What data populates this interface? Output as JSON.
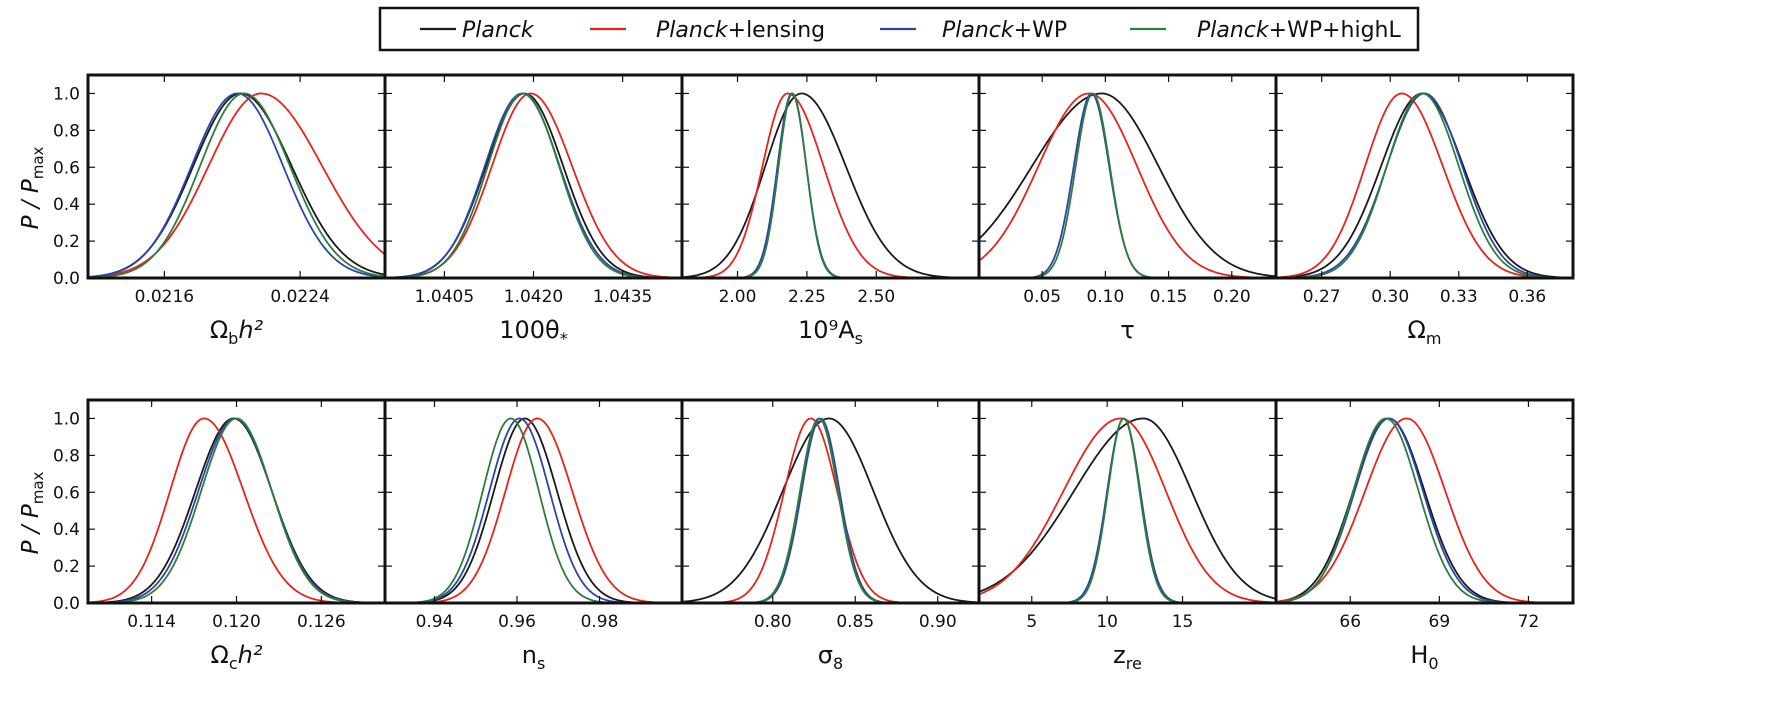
{
  "legend": {
    "entries": [
      {
        "prefix": "Planck",
        "suffix": "",
        "color": "#1a1a1a"
      },
      {
        "prefix": "Planck",
        "suffix": "+lensing",
        "color": "#e8231b"
      },
      {
        "prefix": "Planck",
        "suffix": "+WP",
        "color": "#2b46a8"
      },
      {
        "prefix": "Planck",
        "suffix": "+WP+highL",
        "color": "#2e7d3a"
      }
    ]
  },
  "row_ylabels": [
    {
      "main": "P / P",
      "sub": "max"
    },
    {
      "main": "P / P",
      "sub": "max"
    }
  ],
  "chart_data": [
    {
      "type": "line",
      "xlabel_main": "Ω",
      "xlabel_sub": "b",
      "xlabel_tail": "h²",
      "xlim": [
        0.02115,
        0.0229
      ],
      "ylim": [
        0,
        1.1
      ],
      "xticks": [
        0.0216,
        0.0224
      ],
      "xtick_labels": [
        "0.0216",
        "0.0224"
      ],
      "yticks": [
        0.0,
        0.2,
        0.4,
        0.6,
        0.8,
        1.0
      ],
      "ytick_labels": [
        "0.0",
        "0.2",
        "0.4",
        "0.6",
        "0.8",
        "1.0"
      ],
      "series": [
        {
          "name": "Planck",
          "peak": 0.02205,
          "sigma_left": 0.00028,
          "sigma_right": 0.0003
        },
        {
          "name": "Planck+lensing",
          "peak": 0.02217,
          "sigma_left": 0.00031,
          "sigma_right": 0.00036
        },
        {
          "name": "Planck+WP",
          "peak": 0.02203,
          "sigma_left": 0.00027,
          "sigma_right": 0.00027
        },
        {
          "name": "Planck+WP+highL",
          "peak": 0.02207,
          "sigma_left": 0.00026,
          "sigma_right": 0.00027
        }
      ]
    },
    {
      "type": "line",
      "xlabel_main": "100θ",
      "xlabel_sub": "*",
      "xlabel_tail": "",
      "xlim": [
        1.0395,
        1.0445
      ],
      "ylim": [
        0,
        1.1
      ],
      "xticks": [
        1.0405,
        1.042,
        1.0435
      ],
      "xtick_labels": [
        "1.0405",
        "1.0420",
        "1.0435"
      ],
      "yticks": [],
      "ytick_labels": [],
      "series": [
        {
          "name": "Planck",
          "peak": 1.04185,
          "sigma_left": 0.00065,
          "sigma_right": 0.00065
        },
        {
          "name": "Planck+lensing",
          "peak": 1.04195,
          "sigma_left": 0.00065,
          "sigma_right": 0.0007
        },
        {
          "name": "Planck+WP",
          "peak": 1.04181,
          "sigma_left": 0.00063,
          "sigma_right": 0.00063
        },
        {
          "name": "Planck+WP+highL",
          "peak": 1.04183,
          "sigma_left": 0.0006,
          "sigma_right": 0.0006
        }
      ]
    },
    {
      "type": "line",
      "xlabel_main": "10⁹A",
      "xlabel_sub": "s",
      "xlabel_tail": "",
      "xlim": [
        1.8,
        2.87
      ],
      "ylim": [
        0,
        1.1
      ],
      "xticks": [
        2.0,
        2.25,
        2.5
      ],
      "xtick_labels": [
        "2.00",
        "2.25",
        "2.50"
      ],
      "yticks": [],
      "ytick_labels": [],
      "series": [
        {
          "name": "Planck",
          "peak": 2.23,
          "sigma_left": 0.13,
          "sigma_right": 0.16
        },
        {
          "name": "Planck+lensing",
          "peak": 2.18,
          "sigma_left": 0.09,
          "sigma_right": 0.13
        },
        {
          "name": "Planck+WP",
          "peak": 2.196,
          "sigma_left": 0.052,
          "sigma_right": 0.052
        },
        {
          "name": "Planck+WP+highL",
          "peak": 2.198,
          "sigma_left": 0.05,
          "sigma_right": 0.05
        }
      ]
    },
    {
      "type": "line",
      "xlabel_main": "τ",
      "xlabel_sub": "",
      "xlabel_tail": "",
      "xlim": [
        0.0,
        0.235
      ],
      "ylim": [
        0,
        1.1
      ],
      "xticks": [
        0.05,
        0.1,
        0.15,
        0.2
      ],
      "xtick_labels": [
        "0.05",
        "0.10",
        "0.15",
        "0.20"
      ],
      "yticks": [],
      "ytick_labels": [],
      "series": [
        {
          "name": "Planck",
          "peak": 0.097,
          "sigma_left": 0.055,
          "sigma_right": 0.045
        },
        {
          "name": "Planck+lensing",
          "peak": 0.087,
          "sigma_left": 0.04,
          "sigma_right": 0.038
        },
        {
          "name": "Planck+WP",
          "peak": 0.089,
          "sigma_left": 0.014,
          "sigma_right": 0.014
        },
        {
          "name": "Planck+WP+highL",
          "peak": 0.09,
          "sigma_left": 0.0135,
          "sigma_right": 0.0135
        }
      ]
    },
    {
      "type": "line",
      "xlabel_main": "Ω",
      "xlabel_sub": "m",
      "xlabel_tail": "",
      "xlim": [
        0.25,
        0.38
      ],
      "ylim": [
        0,
        1.1
      ],
      "xticks": [
        0.27,
        0.3,
        0.33,
        0.36
      ],
      "xtick_labels": [
        "0.27",
        "0.30",
        "0.33",
        "0.36"
      ],
      "yticks": [],
      "ytick_labels": [],
      "series": [
        {
          "name": "Planck",
          "peak": 0.314,
          "sigma_left": 0.018,
          "sigma_right": 0.018
        },
        {
          "name": "Planck+lensing",
          "peak": 0.305,
          "sigma_left": 0.016,
          "sigma_right": 0.018
        },
        {
          "name": "Planck+WP",
          "peak": 0.315,
          "sigma_left": 0.0165,
          "sigma_right": 0.0165
        },
        {
          "name": "Planck+WP+highL",
          "peak": 0.314,
          "sigma_left": 0.0155,
          "sigma_right": 0.016
        }
      ]
    },
    {
      "type": "line",
      "xlabel_main": "Ω",
      "xlabel_sub": "c",
      "xlabel_tail": "h²",
      "xlim": [
        0.1095,
        0.1305
      ],
      "ylim": [
        0,
        1.1
      ],
      "xticks": [
        0.114,
        0.12,
        0.126
      ],
      "xtick_labels": [
        "0.114",
        "0.120",
        "0.126"
      ],
      "yticks": [
        0.0,
        0.2,
        0.4,
        0.6,
        0.8,
        1.0
      ],
      "ytick_labels": [
        "0.0",
        "0.2",
        "0.4",
        "0.6",
        "0.8",
        "1.0"
      ],
      "series": [
        {
          "name": "Planck",
          "peak": 0.1198,
          "sigma_left": 0.0027,
          "sigma_right": 0.0027
        },
        {
          "name": "Planck+lensing",
          "peak": 0.1177,
          "sigma_left": 0.0024,
          "sigma_right": 0.0028
        },
        {
          "name": "Planck+WP",
          "peak": 0.1199,
          "sigma_left": 0.0026,
          "sigma_right": 0.0026
        },
        {
          "name": "Planck+WP+highL",
          "peak": 0.12,
          "sigma_left": 0.0025,
          "sigma_right": 0.0025
        }
      ]
    },
    {
      "type": "line",
      "xlabel_main": "n",
      "xlabel_sub": "s",
      "xlabel_tail": "",
      "xlim": [
        0.928,
        1.0
      ],
      "ylim": [
        0,
        1.1
      ],
      "xticks": [
        0.94,
        0.96,
        0.98
      ],
      "xtick_labels": [
        "0.94",
        "0.96",
        "0.98"
      ],
      "yticks": [],
      "ytick_labels": [],
      "series": [
        {
          "name": "Planck",
          "peak": 0.9619,
          "sigma_left": 0.0075,
          "sigma_right": 0.0078
        },
        {
          "name": "Planck+lensing",
          "peak": 0.9649,
          "sigma_left": 0.0077,
          "sigma_right": 0.0085
        },
        {
          "name": "Planck+WP",
          "peak": 0.9606,
          "sigma_left": 0.0073,
          "sigma_right": 0.0073
        },
        {
          "name": "Planck+WP+highL",
          "peak": 0.9585,
          "sigma_left": 0.0068,
          "sigma_right": 0.0068
        }
      ]
    },
    {
      "type": "line",
      "xlabel_main": "σ",
      "xlabel_sub": "8",
      "xlabel_tail": "",
      "xlim": [
        0.745,
        0.925
      ],
      "ylim": [
        0,
        1.1
      ],
      "xticks": [
        0.8,
        0.85,
        0.9
      ],
      "xtick_labels": [
        "0.80",
        "0.85",
        "0.90"
      ],
      "yticks": [],
      "ytick_labels": [],
      "series": [
        {
          "name": "Planck",
          "peak": 0.834,
          "sigma_left": 0.028,
          "sigma_right": 0.027
        },
        {
          "name": "Planck+lensing",
          "peak": 0.823,
          "sigma_left": 0.016,
          "sigma_right": 0.016
        },
        {
          "name": "Planck+WP",
          "peak": 0.829,
          "sigma_left": 0.0115,
          "sigma_right": 0.0115
        },
        {
          "name": "Planck+WP+highL",
          "peak": 0.828,
          "sigma_left": 0.0115,
          "sigma_right": 0.0115
        }
      ]
    },
    {
      "type": "line",
      "xlabel_main": "z",
      "xlabel_sub": "re",
      "xlabel_tail": "",
      "xlim": [
        1.5,
        21.2
      ],
      "ylim": [
        0,
        1.1
      ],
      "xticks": [
        5,
        10,
        15
      ],
      "xtick_labels": [
        "5",
        "10",
        "15"
      ],
      "yticks": [],
      "ytick_labels": [],
      "series": [
        {
          "name": "Planck",
          "peak": 12.4,
          "sigma_left": 4.6,
          "sigma_right": 3.2
        },
        {
          "name": "Planck+lensing",
          "peak": 10.9,
          "sigma_left": 3.8,
          "sigma_right": 3.0
        },
        {
          "name": "Planck+WP",
          "peak": 11.1,
          "sigma_left": 1.1,
          "sigma_right": 1.1
        },
        {
          "name": "Planck+WP+highL",
          "peak": 11.1,
          "sigma_left": 1.05,
          "sigma_right": 1.05
        }
      ]
    },
    {
      "type": "line",
      "xlabel_main": "H",
      "xlabel_sub": "0",
      "xlabel_tail": "",
      "xlim": [
        63.5,
        73.5
      ],
      "ylim": [
        0,
        1.1
      ],
      "xticks": [
        66,
        69,
        72
      ],
      "xtick_labels": [
        "66",
        "69",
        "72"
      ],
      "yticks": [],
      "ytick_labels": [],
      "series": [
        {
          "name": "Planck",
          "peak": 67.3,
          "sigma_left": 1.2,
          "sigma_right": 1.2
        },
        {
          "name": "Planck+lensing",
          "peak": 67.9,
          "sigma_left": 1.4,
          "sigma_right": 1.3
        },
        {
          "name": "Planck+WP",
          "peak": 67.3,
          "sigma_left": 1.15,
          "sigma_right": 1.15
        },
        {
          "name": "Planck+WP+highL",
          "peak": 67.2,
          "sigma_left": 1.1,
          "sigma_right": 1.1
        }
      ]
    }
  ]
}
